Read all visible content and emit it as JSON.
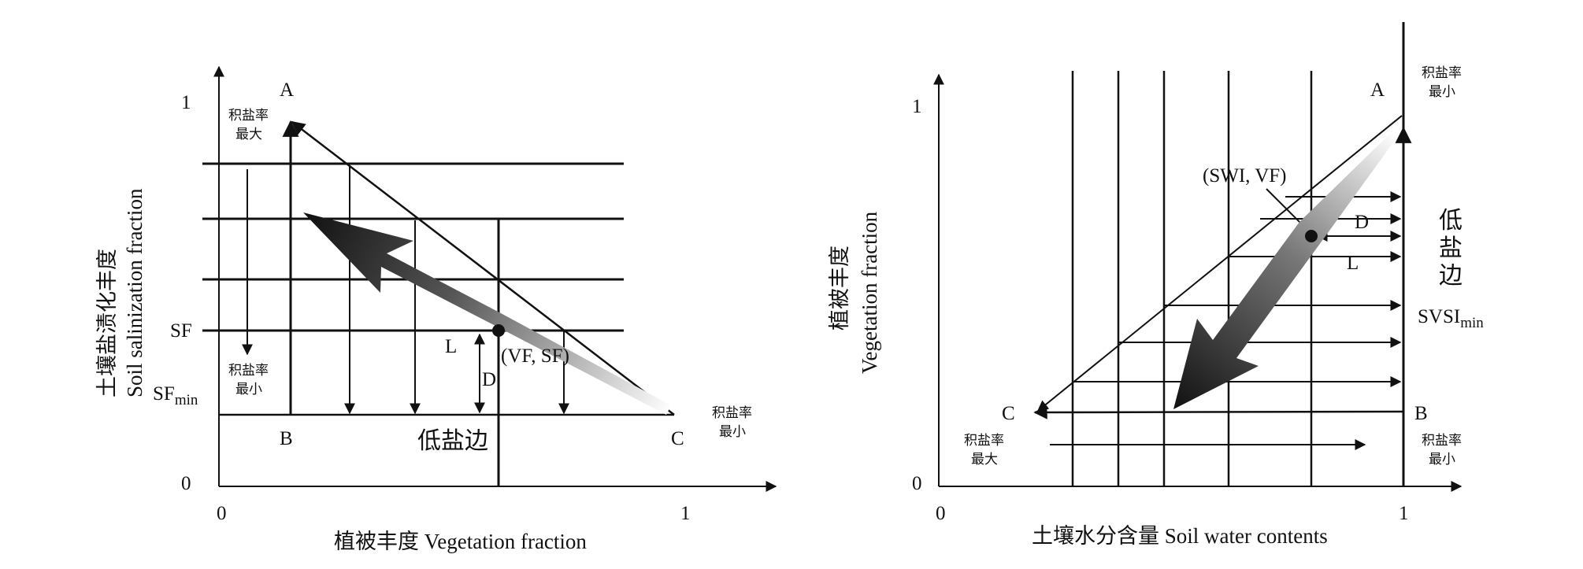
{
  "left_panel": {
    "x_axis_title": "植被丰度 Vegetation fraction",
    "y_axis_title_cn": "土壤盐渍化丰度",
    "y_axis_title_en": "Soil salinization fraction",
    "origin_x": "0",
    "origin_y": "0",
    "x_one": "1",
    "y_one": "1",
    "vertex_a": "A",
    "vertex_b": "B",
    "vertex_c": "C",
    "max_accum_line1": "积盐率",
    "max_accum_line2": "最大",
    "min_accum_left_line1": "积盐率",
    "min_accum_left_line2": "最小",
    "min_accum_right_line1": "积盐率",
    "min_accum_right_line2": "最小",
    "sf_label": "SF",
    "sfmin_base": "SF",
    "sfmin_sub": "min",
    "l_label": "L",
    "d_label": "D",
    "point_label": "(VF, SF)",
    "low_salt_edge": "低盐边"
  },
  "right_panel": {
    "x_axis_title": "土壤水分含量 Soil water contents",
    "y_axis_title_cn": "植被丰度",
    "y_axis_title_en": "Vegetation fraction",
    "origin": "0",
    "x_one": "1",
    "y_one": "1",
    "vertex_a": "A",
    "vertex_b": "B",
    "vertex_c": "C",
    "min_accum_top_line1": "积盐率",
    "min_accum_top_line2": "最小",
    "max_accum_line1": "积盐率",
    "max_accum_line2": "最大",
    "min_accum_bottom_line1": "积盐率",
    "min_accum_bottom_line2": "最小",
    "point_label": "(SWI, VF)",
    "d_label": "D",
    "l_label": "L",
    "low_salt_edge_1": "低",
    "low_salt_edge_2": "盐",
    "low_salt_edge_3": "边",
    "svsi_base": "SVSI",
    "svsi_sub": "min"
  },
  "colors": {
    "ink": "#111111",
    "arrow_dark": "#111111",
    "arrow_light": "#ffffff"
  }
}
